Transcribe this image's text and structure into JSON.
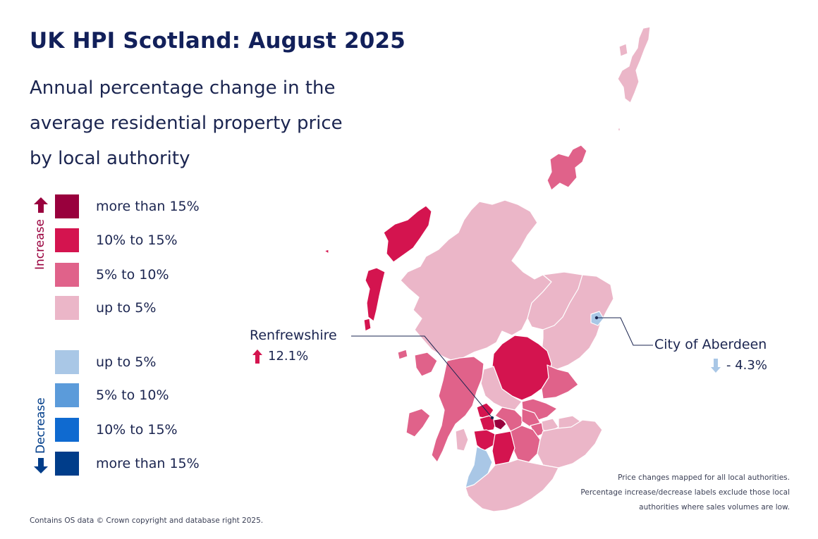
{
  "title": "UK HPI Scotland: August 2025",
  "subtitle": "Annual percentage change in the average residential property price by local authority",
  "legend": {
    "increase_label": "Increase",
    "decrease_label": "Decrease",
    "increase": [
      {
        "label": "more than 15%",
        "color": "#99003d"
      },
      {
        "label": "10% to 15%",
        "color": "#d4144f"
      },
      {
        "label": "5% to 10%",
        "color": "#e0628a"
      },
      {
        "label": "up to 5%",
        "color": "#ebb6c8"
      }
    ],
    "decrease": [
      {
        "label": "up to 5%",
        "color": "#a9c7e6"
      },
      {
        "label": "5% to 10%",
        "color": "#5b9bda"
      },
      {
        "label": "10% to 15%",
        "color": "#0f6ad0"
      },
      {
        "label": "more than 15%",
        "color": "#003d8a"
      }
    ]
  },
  "callouts": [
    {
      "name": "Renfrewshire",
      "value": "12.1%",
      "direction": "up",
      "arrow_color": "#d4144f"
    },
    {
      "name": "City of Aberdeen",
      "value": "- 4.3%",
      "direction": "down",
      "arrow_color": "#a9c7e6"
    }
  ],
  "note": "Price changes mapped for all local authorities. Percentage increase/decrease labels exclude those local authorities where sales volumes are low.",
  "credit": "Contains OS data © Crown copyright and database right 2025."
}
